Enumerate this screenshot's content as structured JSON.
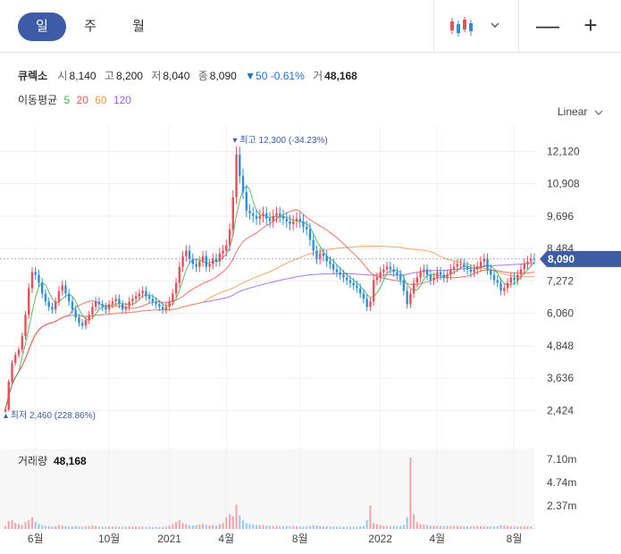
{
  "period_tabs": [
    {
      "label": "일",
      "active": true
    },
    {
      "label": "주",
      "active": false
    },
    {
      "label": "월",
      "active": false
    }
  ],
  "toolbar": {
    "chart_type_icon": "candlestick-icon",
    "dropdown_icon": "chevron-down-icon",
    "minus_label": "—",
    "plus_label": "+"
  },
  "quote": {
    "name": "큐렉소",
    "open_label": "시",
    "open": "8,140",
    "high_label": "고",
    "high": "8,200",
    "low_label": "저",
    "low": "8,040",
    "close_label": "종",
    "close": "8,090",
    "change": "▼50 -0.61%",
    "volume_label": "거",
    "volume": "48,168"
  },
  "ma_legend": {
    "label": "이동평균",
    "periods": [
      "5",
      "20",
      "60",
      "120"
    ],
    "colors": [
      "#3fae49",
      "#ea5a4f",
      "#f0964a",
      "#9a5ee8"
    ]
  },
  "scale_mode": "Linear",
  "volume_panel": {
    "label": "거래량",
    "value": "48,168"
  },
  "colors": {
    "up": "#e8505b",
    "down": "#2f8fd8",
    "accent": "#3d5ba6",
    "grid": "#eeeeee",
    "price_tag": "#3d5ba6"
  },
  "chart_data": {
    "type": "line",
    "y_ticks": [
      "12,120",
      "10,908",
      "9,696",
      "8,484",
      "7,272",
      "6,060",
      "4,848",
      "3,636",
      "2,424"
    ],
    "y_tick_values": [
      12120,
      10908,
      9696,
      8484,
      7272,
      6060,
      4848,
      3636,
      2424
    ],
    "ylim": [
      2000,
      12600
    ],
    "x_ticks": [
      "6월",
      "10월",
      "2021",
      "4월",
      "8월",
      "2022",
      "4월",
      "8월"
    ],
    "x_tick_index": [
      9,
      31,
      49,
      66,
      88,
      112,
      129,
      152
    ],
    "current_price_label": "8,090",
    "current_price": 8090,
    "high_marker": {
      "label": "최고 12,300 (-34.23%)",
      "index": 69,
      "value": 12300
    },
    "low_marker": {
      "label": "최저 2,460 (228.86%)",
      "index": 0,
      "value": 2460
    },
    "close": [
      2460,
      3500,
      4200,
      4500,
      4700,
      5200,
      6000,
      7000,
      7600,
      7500,
      7200,
      6800,
      6500,
      6300,
      6200,
      6500,
      6900,
      7100,
      6800,
      6500,
      6200,
      5900,
      5700,
      5600,
      5800,
      6000,
      6300,
      6500,
      6400,
      6300,
      6200,
      6400,
      6500,
      6600,
      6400,
      6200,
      6300,
      6500,
      6600,
      6700,
      6800,
      6900,
      6700,
      6600,
      6500,
      6400,
      6300,
      6200,
      6300,
      6500,
      6800,
      7200,
      7800,
      8200,
      8400,
      8100,
      7900,
      7800,
      8000,
      8200,
      7800,
      7900,
      8100,
      8000,
      8300,
      8400,
      8600,
      9200,
      10400,
      12000,
      11200,
      10600,
      9900,
      9800,
      9700,
      9600,
      9700,
      9800,
      9600,
      9500,
      9700,
      9800,
      9700,
      9600,
      9500,
      9400,
      9500,
      9600,
      9500,
      9300,
      9200,
      8800,
      8400,
      8100,
      8300,
      8200,
      8000,
      7900,
      7700,
      7600,
      7500,
      7400,
      7300,
      7200,
      7100,
      7000,
      6800,
      6600,
      6300,
      6500,
      7300,
      7400,
      7600,
      7700,
      7800,
      7700,
      7600,
      7500,
      7300,
      6900,
      6400,
      6800,
      7200,
      7400,
      7600,
      7700,
      7500,
      7300,
      7400,
      7600,
      7500,
      7400,
      7500,
      7700,
      7800,
      7900,
      7900,
      7800,
      7700,
      7600,
      7700,
      7800,
      8000,
      8100,
      7700,
      7500,
      7300,
      7200,
      6900,
      7000,
      7200,
      7400,
      7300,
      7500,
      7700,
      7900,
      8000,
      8100,
      8090
    ],
    "volume_ticks": [
      "7.10m",
      "4.74m",
      "2.37m"
    ],
    "volume_tick_values": [
      7100000,
      4740000,
      2370000
    ],
    "volume_max": 8200000,
    "volume": [
      300000,
      800000,
      900000,
      600000,
      500000,
      400000,
      700000,
      900000,
      1200000,
      700000,
      500000,
      400000,
      300000,
      300000,
      250000,
      300000,
      400000,
      350000,
      300000,
      250000,
      250000,
      300000,
      250000,
      220000,
      260000,
      300000,
      350000,
      300000,
      250000,
      230000,
      220000,
      250000,
      260000,
      240000,
      230000,
      220000,
      230000,
      250000,
      240000,
      230000,
      220000,
      230000,
      220000,
      210000,
      200000,
      210000,
      200000,
      200000,
      220000,
      350000,
      500000,
      700000,
      900000,
      600000,
      500000,
      400000,
      350000,
      400000,
      450000,
      500000,
      400000,
      350000,
      400000,
      350000,
      500000,
      600000,
      1200000,
      1500000,
      1300000,
      2500000,
      1400000,
      900000,
      600000,
      500000,
      450000,
      400000,
      380000,
      400000,
      350000,
      330000,
      300000,
      320000,
      300000,
      280000,
      300000,
      290000,
      280000,
      270000,
      260000,
      260000,
      250000,
      300000,
      400000,
      350000,
      300000,
      280000,
      270000,
      260000,
      250000,
      240000,
      230000,
      230000,
      220000,
      220000,
      230000,
      240000,
      260000,
      300000,
      900000,
      2400000,
      600000,
      500000,
      400000,
      350000,
      320000,
      300000,
      300000,
      280000,
      300000,
      400000,
      1200000,
      7300000,
      1500000,
      700000,
      500000,
      450000,
      400000,
      350000,
      330000,
      320000,
      310000,
      300000,
      290000,
      300000,
      310000,
      300000,
      290000,
      280000,
      270000,
      260000,
      270000,
      280000,
      300000,
      290000,
      280000,
      270000,
      260000,
      300000,
      400000,
      350000,
      300000,
      280000,
      260000,
      250000,
      260000,
      270000,
      260000,
      250000,
      48168
    ]
  }
}
